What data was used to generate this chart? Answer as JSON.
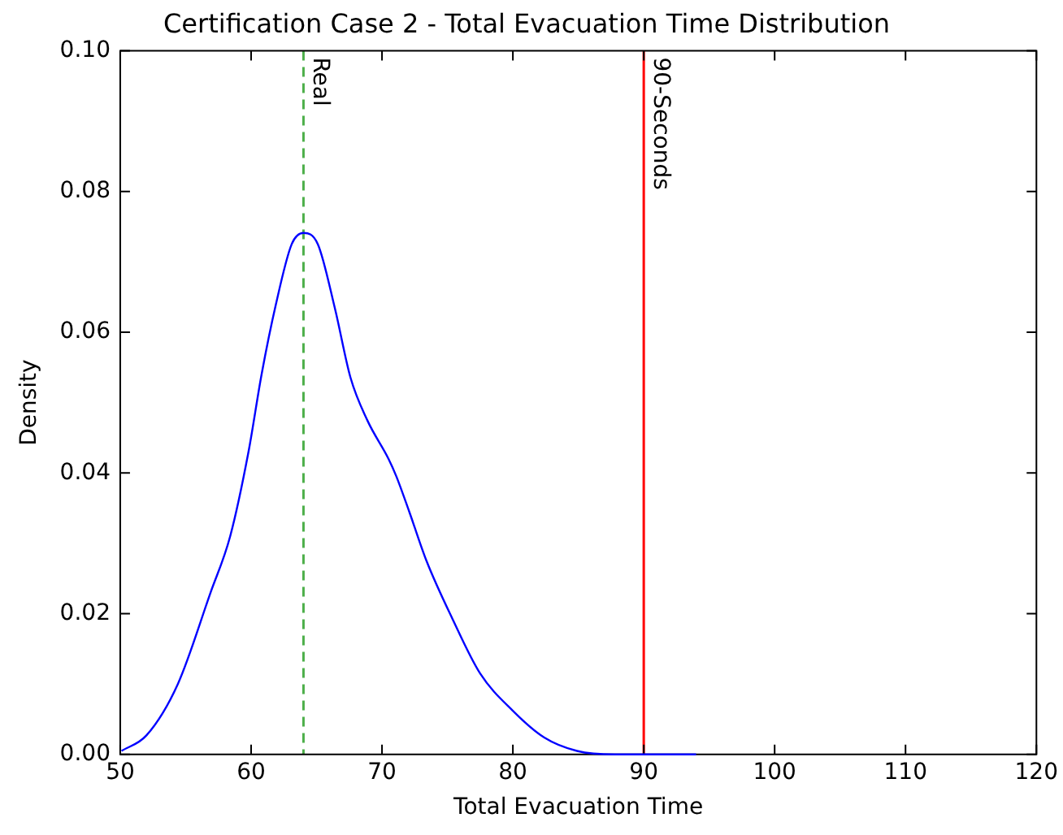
{
  "chart_data": {
    "type": "line",
    "title": "Certification Case 2 - Total Evacuation Time Distribution",
    "xlabel": "Total Evacuation Time",
    "ylabel": "Density",
    "series": [
      {
        "color": "#0000ff",
        "x": [
          50.1,
          52,
          54.4,
          56.9,
          58.4,
          59.8,
          60.8,
          61.9,
          63.1,
          64,
          65.1,
          66.4,
          67.6,
          68.9,
          70.5,
          71.1,
          72.1,
          73.4,
          75.4,
          77.5,
          80,
          82.4,
          84.9,
          87.8,
          94
        ],
        "values": [
          0.0005,
          0.0027,
          0.01,
          0.023,
          0.031,
          0.043,
          0.054,
          0.064,
          0.0725,
          0.0741,
          0.0725,
          0.0634,
          0.0535,
          0.0474,
          0.042,
          0.0395,
          0.0344,
          0.0275,
          0.0192,
          0.0115,
          0.0062,
          0.0024,
          0.0005,
          0,
          0
        ]
      }
    ],
    "xlim": [
      50,
      120
    ],
    "xticks": [
      50,
      60,
      70,
      80,
      90,
      100,
      110,
      120
    ],
    "ylim": [
      0,
      0.1
    ],
    "yticks": [
      {
        "value": 0,
        "label": "0.00"
      },
      {
        "value": 0.02,
        "label": "0.02"
      },
      {
        "value": 0.04,
        "label": "0.04"
      },
      {
        "value": 0.06,
        "label": "0.06"
      },
      {
        "value": 0.08,
        "label": "0.08"
      },
      {
        "value": 0.1,
        "label": "0.10"
      }
    ],
    "ref_lines": [
      {
        "axis": "x",
        "value": 64,
        "label": "Real",
        "color": "#4daf4a",
        "line_style": "dashed"
      },
      {
        "axis": "x",
        "value": 90,
        "label": "90-Seconds",
        "color": "#ff0000",
        "line_style": "solid"
      }
    ],
    "grid": false,
    "legend": false,
    "marker": "none"
  }
}
